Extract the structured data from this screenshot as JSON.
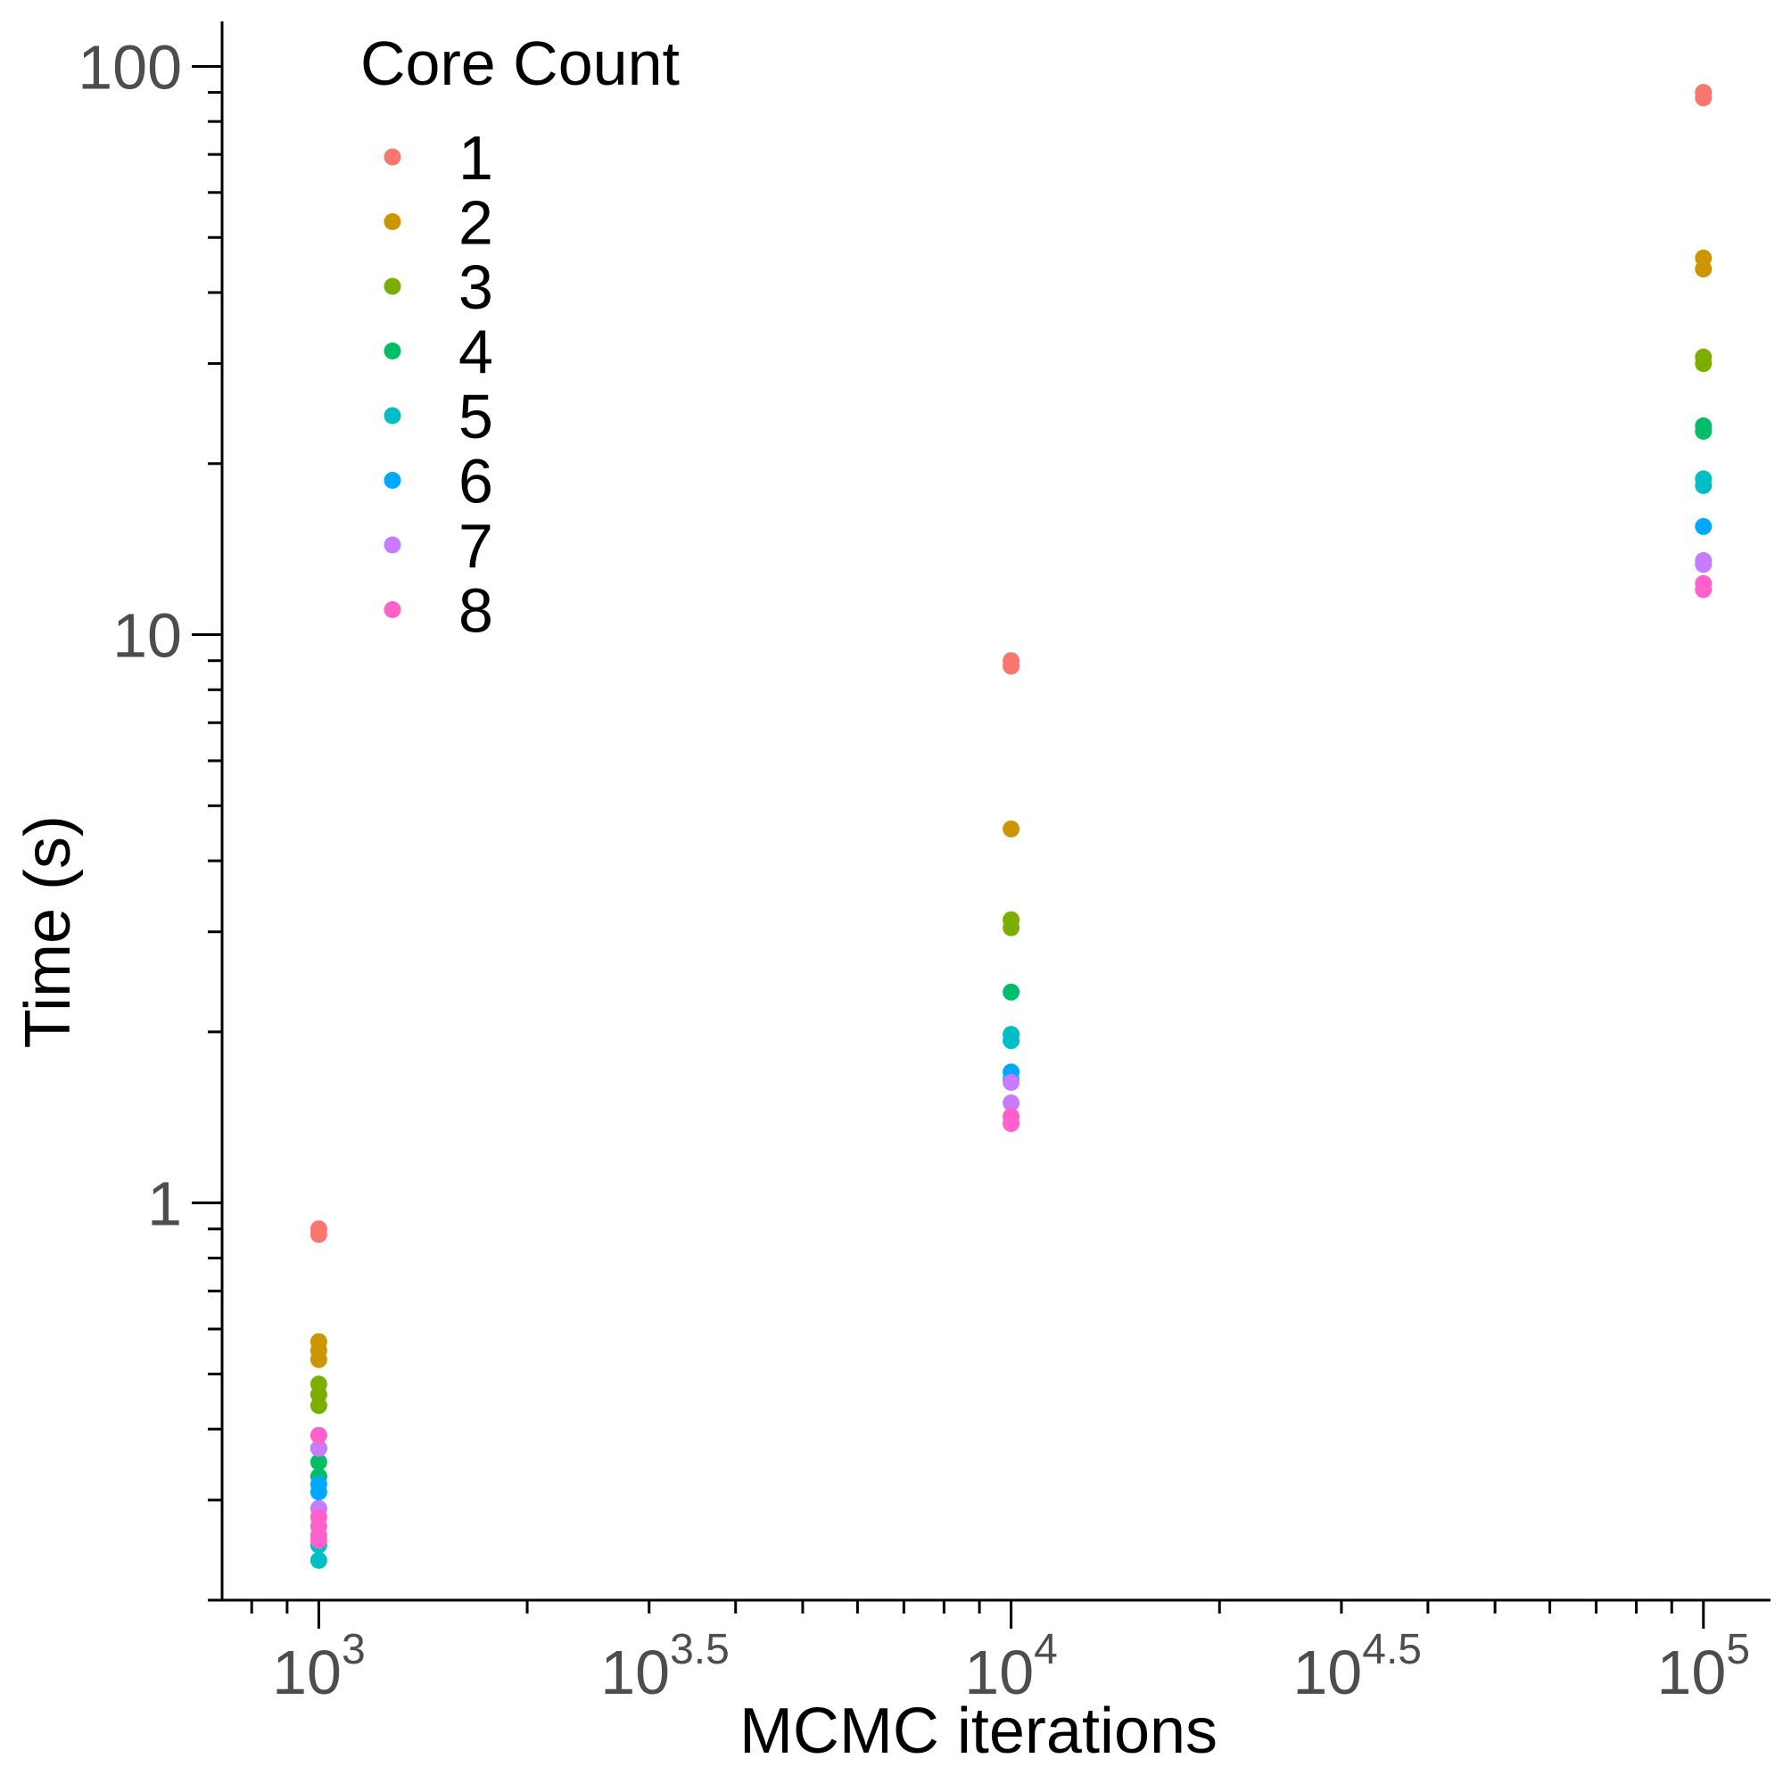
{
  "chart_data": {
    "type": "scatter",
    "xlabel": "MCMC iterations",
    "ylabel": "Time (s)",
    "x_scale": "log10",
    "y_scale": "log10",
    "xlim": [
      725,
      125000
    ],
    "ylim": [
      0.2,
      120
    ],
    "x_ticks": [
      {
        "value": 1000,
        "base": "10",
        "exp": "3"
      },
      {
        "value": 3162.28,
        "base": "10",
        "exp": "3.5"
      },
      {
        "value": 10000,
        "base": "10",
        "exp": "4"
      },
      {
        "value": 31622.8,
        "base": "10",
        "exp": "4.5"
      },
      {
        "value": 100000,
        "base": "10",
        "exp": "5"
      }
    ],
    "y_ticks": [
      {
        "value": 1,
        "label": "1"
      },
      {
        "value": 10,
        "label": "10"
      },
      {
        "value": 100,
        "label": "100"
      }
    ],
    "legend": {
      "title": "Core Count",
      "position": "top-left"
    },
    "grid": false,
    "series": [
      {
        "name": "1",
        "color": "#F8766D",
        "points": [
          [
            1000,
            0.88
          ],
          [
            1000,
            0.9
          ],
          [
            10000,
            8.8
          ],
          [
            10000,
            9.0
          ],
          [
            100000,
            88
          ],
          [
            100000,
            90
          ]
        ]
      },
      {
        "name": "2",
        "color": "#CD9600",
        "points": [
          [
            1000,
            0.53
          ],
          [
            1000,
            0.55
          ],
          [
            1000,
            0.57
          ],
          [
            10000,
            4.55
          ],
          [
            100000,
            44
          ],
          [
            100000,
            46
          ]
        ]
      },
      {
        "name": "3",
        "color": "#7CAE00",
        "points": [
          [
            1000,
            0.44
          ],
          [
            1000,
            0.46
          ],
          [
            1000,
            0.48
          ],
          [
            10000,
            3.05
          ],
          [
            10000,
            3.15
          ],
          [
            100000,
            30
          ],
          [
            100000,
            30.8
          ]
        ]
      },
      {
        "name": "4",
        "color": "#00BE67",
        "points": [
          [
            1000,
            0.33
          ],
          [
            1000,
            0.35
          ],
          [
            1000,
            0.37
          ],
          [
            10000,
            2.35
          ],
          [
            100000,
            22.8
          ],
          [
            100000,
            23.3
          ]
        ]
      },
      {
        "name": "5",
        "color": "#00BFC4",
        "points": [
          [
            1000,
            0.235
          ],
          [
            1000,
            0.25
          ],
          [
            10000,
            1.93
          ],
          [
            10000,
            1.98
          ],
          [
            100000,
            18.3
          ],
          [
            100000,
            18.8
          ]
        ]
      },
      {
        "name": "6",
        "color": "#00A9FF",
        "points": [
          [
            1000,
            0.31
          ],
          [
            1000,
            0.32
          ],
          [
            10000,
            1.65
          ],
          [
            10000,
            1.7
          ],
          [
            100000,
            15.5
          ]
        ]
      },
      {
        "name": "7",
        "color": "#C77CFF",
        "points": [
          [
            1000,
            0.37
          ],
          [
            1000,
            0.29
          ],
          [
            10000,
            1.5
          ],
          [
            10000,
            1.63
          ],
          [
            100000,
            13.3
          ],
          [
            100000,
            13.5
          ]
        ]
      },
      {
        "name": "8",
        "color": "#FF61CC",
        "points": [
          [
            1000,
            0.39
          ],
          [
            1000,
            0.28
          ],
          [
            1000,
            0.27
          ],
          [
            1000,
            0.26
          ],
          [
            1000,
            0.255
          ],
          [
            10000,
            1.38
          ],
          [
            10000,
            1.42
          ],
          [
            100000,
            12.0
          ],
          [
            100000,
            12.3
          ]
        ]
      }
    ]
  }
}
